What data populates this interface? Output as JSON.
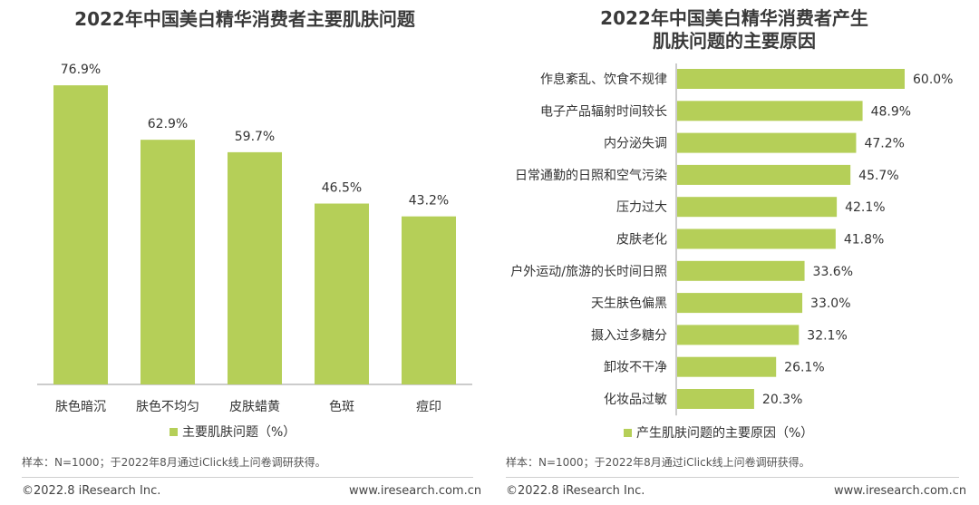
{
  "colors": {
    "bar": "#b5cf58",
    "axis": "#999999",
    "text": "#333333"
  },
  "left": {
    "title": "2022年中国美白精华消费者主要肌肤问题",
    "legend": "主要肌肤问题（%）",
    "note": "样本：N=1000；于2022年8月通过iClick线上问卷调研获得。",
    "footer_left": "©2022.8 iResearch Inc.",
    "footer_right": "www.iresearch.com.cn"
  },
  "right": {
    "title_line1": "2022年中国美白精华消费者产生",
    "title_line2": "肌肤问题的主要原因",
    "legend": "产生肌肤问题的主要原因（%）",
    "note": "样本：N=1000；于2022年8月通过iClick线上问卷调研获得。",
    "footer_left": "©2022.8 iResearch Inc.",
    "footer_right": "www.iresearch.com.cn"
  },
  "chart_data": [
    {
      "type": "bar",
      "title": "2022年中国美白精华消费者主要肌肤问题",
      "categories": [
        "肤色暗沉",
        "肤色不均匀",
        "皮肤蜡黄",
        "色斑",
        "痘印"
      ],
      "series": [
        {
          "name": "主要肌肤问题（%）",
          "values": [
            76.9,
            62.9,
            59.7,
            46.5,
            43.2
          ]
        }
      ],
      "value_labels": [
        "76.9%",
        "62.9%",
        "59.7%",
        "46.5%",
        "43.2%"
      ],
      "ylim": [
        0,
        100
      ],
      "grid": false,
      "legend_position": "bottom"
    },
    {
      "type": "bar",
      "orientation": "horizontal",
      "title": "2022年中国美白精华消费者产生肌肤问题的主要原因",
      "categories": [
        "作息紊乱、饮食不规律",
        "电子产品辐射时间较长",
        "内分泌失调",
        "日常通勤的日照和空气污染",
        "压力过大",
        "皮肤老化",
        "户外运动/旅游的长时间日照",
        "天生肤色偏黑",
        "摄入过多糖分",
        "卸妆不干净",
        "化妆品过敏"
      ],
      "series": [
        {
          "name": "产生肌肤问题的主要原因（%）",
          "values": [
            60.0,
            48.9,
            47.2,
            45.7,
            42.1,
            41.8,
            33.6,
            33.0,
            32.1,
            26.1,
            20.3
          ]
        }
      ],
      "value_labels": [
        "60.0%",
        "48.9%",
        "47.2%",
        "45.7%",
        "42.1%",
        "41.8%",
        "33.6%",
        "33.0%",
        "32.1%",
        "26.1%",
        "20.3%"
      ],
      "xlim": [
        0,
        60
      ],
      "grid": false,
      "legend_position": "bottom"
    }
  ]
}
